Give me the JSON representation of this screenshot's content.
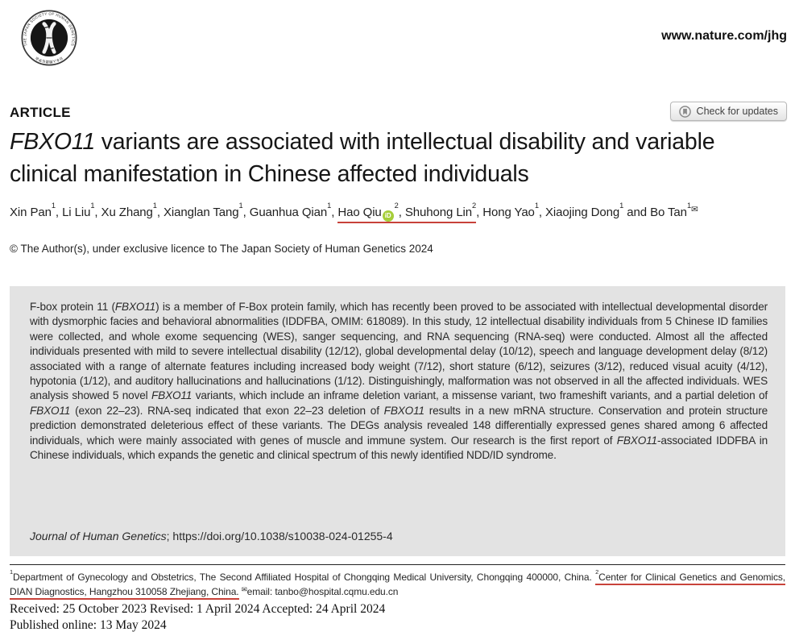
{
  "header": {
    "site_url": "www.nature.com/jhg",
    "logo": {
      "ring_text": "THE JAPAN SOCIETY OF HUMAN GENETICS",
      "bottom_text": "日本人類遺伝学会"
    }
  },
  "article": {
    "kicker": "ARTICLE",
    "check_for_updates": "Check for updates",
    "title_segments": [
      {
        "t": "FBXO11",
        "i": true
      },
      {
        "t": " variants are associated with intellectual disability and variable clinical manifestation in Chinese affected individuals"
      }
    ],
    "author_segments": [
      {
        "t": "Xin Pan"
      },
      {
        "t": "1",
        "sup": true
      },
      {
        "t": ", "
      },
      {
        "t": "Li Liu"
      },
      {
        "t": "1",
        "sup": true
      },
      {
        "t": ", "
      },
      {
        "t": "Xu Zhang"
      },
      {
        "t": "1",
        "sup": true
      },
      {
        "t": ", "
      },
      {
        "t": "Xianglan Tang"
      },
      {
        "t": "1",
        "sup": true
      },
      {
        "t": ", "
      },
      {
        "t": "Guanhua Qian"
      },
      {
        "t": "1",
        "sup": true
      },
      {
        "t": ", "
      },
      {
        "u": true,
        "parts": [
          {
            "t": "Hao Qiu"
          },
          {
            "icon": "orcid"
          },
          {
            "t": "2",
            "sup": true
          },
          {
            "t": ", "
          },
          {
            "t": "Shuhong Lin"
          },
          {
            "t": "2",
            "sup": true
          }
        ]
      },
      {
        "t": ", "
      },
      {
        "t": "Hong Yao"
      },
      {
        "t": "1",
        "sup": true
      },
      {
        "t": ", "
      },
      {
        "t": "Xiaojing Dong"
      },
      {
        "t": "1",
        "sup": true
      },
      {
        "t": " and "
      },
      {
        "t": "Bo Tan"
      },
      {
        "t": "1",
        "sup": true
      },
      {
        "icon": "email"
      }
    ],
    "copyright": "© The Author(s), under exclusive licence to The Japan Society of Human Genetics 2024"
  },
  "abstract": {
    "segments": [
      {
        "t": "F-box protein 11 ("
      },
      {
        "t": "FBXO11",
        "i": true
      },
      {
        "t": ") is a member of F-Box protein family, which has recently been proved to be associated with intellectual developmental disorder with dysmorphic facies and behavioral abnormalities (IDDFBA, OMIM: 618089). In this study, 12 intellectual disability individuals from 5 Chinese ID families were collected, and whole exome sequencing (WES), sanger sequencing, and RNA sequencing (RNA-seq) were conducted. Almost all the affected individuals presented with mild to severe intellectual disability (12/12), global developmental delay (10/12), speech and language development delay (8/12) associated with a range of alternate features including increased body weight (7/12), short stature (6/12), seizures (3/12), reduced visual acuity (4/12), hypotonia (1/12), and auditory hallucinations and hallucinations (1/12). Distinguishingly, malformation was not observed in all the affected individuals. WES analysis showed 5 novel "
      },
      {
        "t": "FBXO11",
        "i": true
      },
      {
        "t": " variants, which include an inframe deletion variant, a missense variant, two frameshift variants, and a partial deletion of "
      },
      {
        "t": "FBXO11",
        "i": true
      },
      {
        "t": " (exon 22–23). RNA-seq indicated that exon 22–23 deletion of "
      },
      {
        "t": "FBXO11",
        "i": true
      },
      {
        "t": " results in a new mRNA structure. Conservation and protein structure prediction demonstrated deleterious effect of these variants. The DEGs analysis revealed 148 differentially expressed genes shared among 6 affected individuals, which were mainly associated with genes of muscle and immune system. Our research is the first report of "
      },
      {
        "t": "FBXO11",
        "i": true
      },
      {
        "t": "-associated IDDFBA in Chinese individuals, which expands the genetic and clinical spectrum of this newly identified NDD/ID syndrome."
      }
    ],
    "citation_segments": [
      {
        "t": "Journal of Human Genetics",
        "i": true
      },
      {
        "t": "; https://doi.org/10.1038/s10038-024-01255-4"
      }
    ]
  },
  "footnote": {
    "segments": [
      {
        "t": "1",
        "sup": true
      },
      {
        "t": "Department of Gynecology and Obstetrics, The Second Affiliated Hospital of Chongqing Medical University, Chongqing 400000, China. "
      },
      {
        "u": true,
        "parts": [
          {
            "t": "2",
            "sup": true
          },
          {
            "t": "Center for Clinical Genetics and Genomics, DIAN Diagnostics, Hangzhou 310058 Zhejiang, China."
          }
        ]
      },
      {
        "t": " "
      },
      {
        "icon": "email"
      },
      {
        "t": "email: tanbo@hospital.cqmu.edu.cn"
      }
    ]
  },
  "dates": {
    "history": "Received: 25 October 2023 Revised: 1 April 2024 Accepted: 24 April 2024",
    "published": "Published online: 13 May 2024"
  },
  "colors": {
    "accent_red_underline": "#c8423a",
    "orcid_green": "#a6ce39",
    "abstract_bg": "#e3e3e3"
  }
}
